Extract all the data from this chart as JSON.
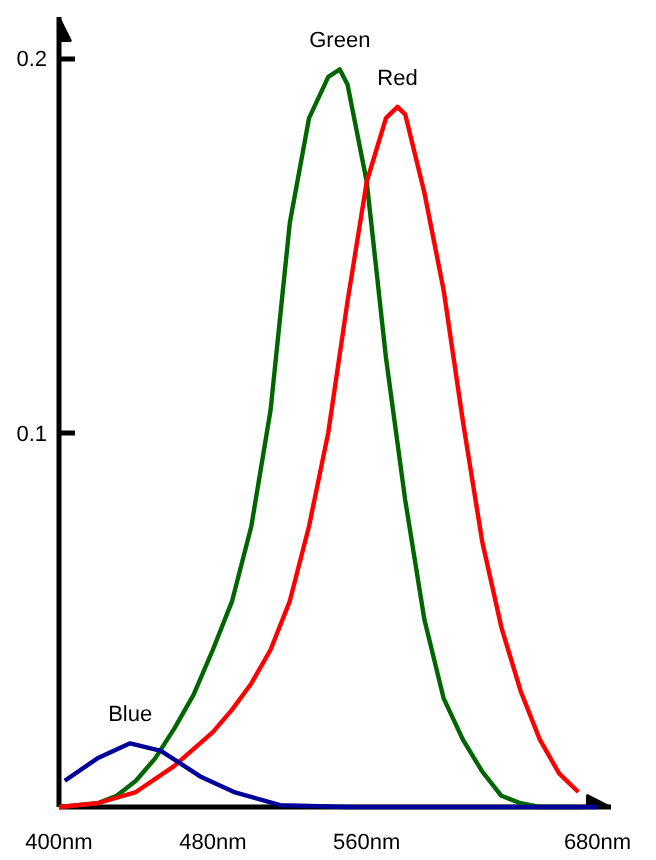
{
  "chart_data": {
    "type": "line",
    "xlim": [
      400,
      687
    ],
    "ylim": [
      0,
      0.211
    ],
    "xticks": [
      {
        "value": 400,
        "label": "400nm"
      },
      {
        "value": 480,
        "label": "480nm"
      },
      {
        "value": 560,
        "label": "560nm"
      },
      {
        "value": 680,
        "label": "680nm"
      }
    ],
    "yticks": [
      0.1,
      0.2
    ],
    "grid": false,
    "legend": false,
    "marker": "none",
    "line_style": "solid",
    "series": [
      {
        "name": "Green",
        "color": "#006600",
        "x": [
          400,
          410,
          420,
          430,
          440,
          450,
          460,
          470,
          480,
          490,
          500,
          510,
          520,
          530,
          540,
          546,
          550,
          560,
          570,
          580,
          590,
          600,
          610,
          620,
          630,
          640,
          650,
          670
        ],
        "values": [
          0,
          0.0005,
          0.001,
          0.003,
          0.007,
          0.013,
          0.021,
          0.03,
          0.042,
          0.055,
          0.075,
          0.106,
          0.156,
          0.184,
          0.195,
          0.197,
          0.193,
          0.167,
          0.12,
          0.082,
          0.05,
          0.029,
          0.018,
          0.0095,
          0.003,
          0.001,
          0,
          0
        ]
      },
      {
        "name": "Red",
        "color": "#ff0000",
        "x": [
          400,
          420,
          440,
          460,
          480,
          490,
          500,
          510,
          520,
          530,
          540,
          550,
          560,
          570,
          576,
          580,
          590,
          600,
          610,
          620,
          630,
          640,
          650,
          660,
          670
        ],
        "values": [
          0,
          0.001,
          0.004,
          0.011,
          0.02,
          0.026,
          0.033,
          0.042,
          0.055,
          0.075,
          0.1,
          0.135,
          0.167,
          0.184,
          0.187,
          0.185,
          0.164,
          0.138,
          0.103,
          0.071,
          0.048,
          0.031,
          0.018,
          0.009,
          0.004
        ]
      },
      {
        "name": "Blue",
        "color": "#000099",
        "x": [
          403,
          420,
          437,
          453,
          474,
          491,
          515,
          550,
          600,
          680
        ],
        "values": [
          0.007,
          0.013,
          0.017,
          0.015,
          0.008,
          0.004,
          0.0005,
          0,
          0,
          0
        ]
      }
    ]
  }
}
